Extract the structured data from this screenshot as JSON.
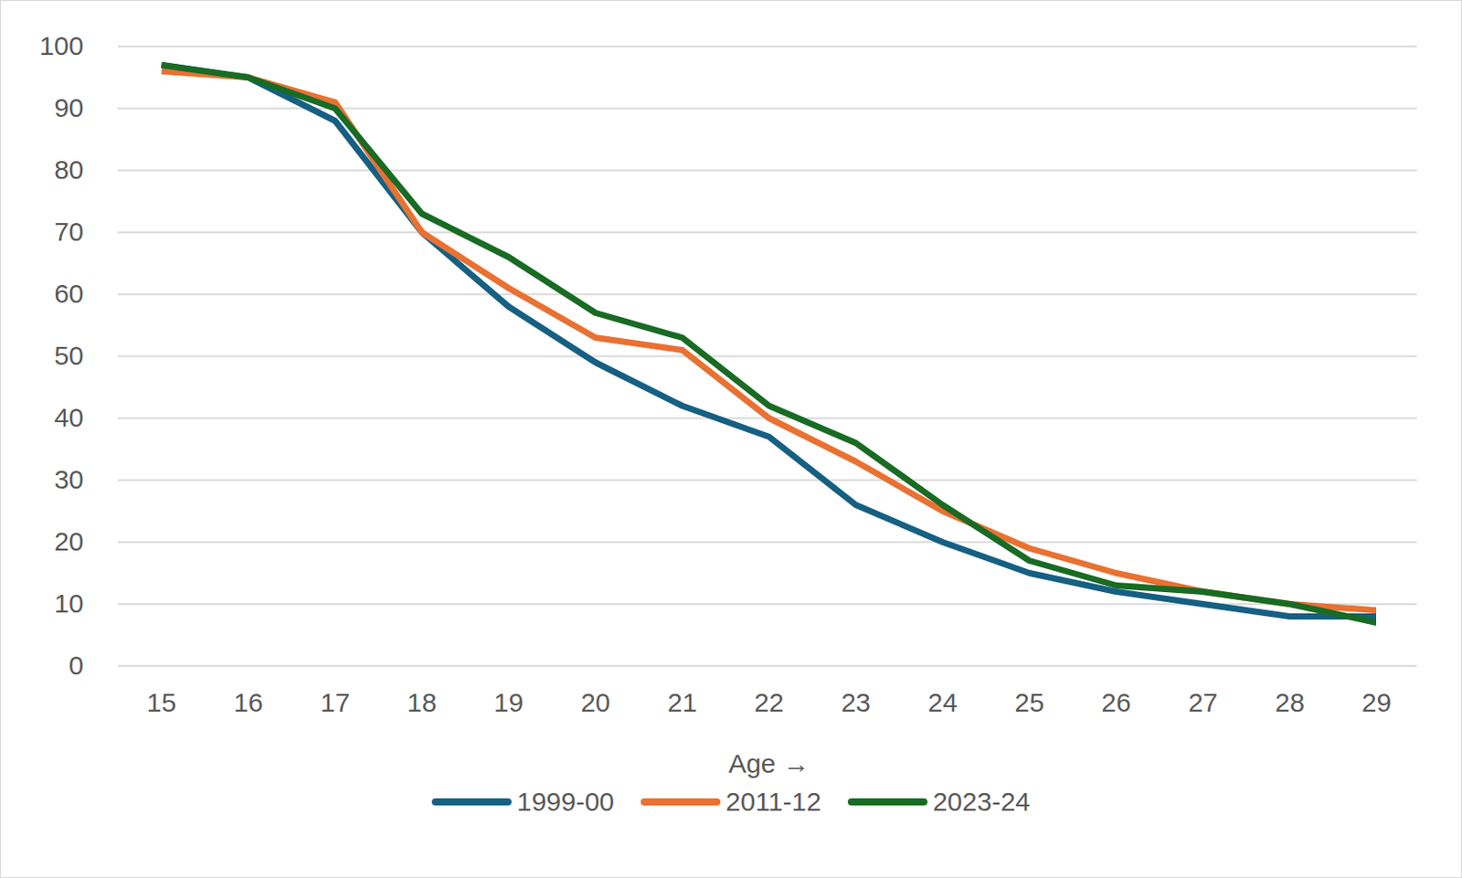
{
  "chart_data": {
    "type": "line",
    "x_label": "Age",
    "x": [
      15,
      16,
      17,
      18,
      19,
      20,
      21,
      22,
      23,
      24,
      25,
      26,
      27,
      28,
      29
    ],
    "xlim": [
      15,
      29
    ],
    "xticks": [
      15,
      16,
      17,
      18,
      19,
      20,
      21,
      22,
      23,
      24,
      25,
      26,
      27,
      28,
      29
    ],
    "ylim": [
      0,
      100
    ],
    "yticks": [
      0,
      10,
      20,
      30,
      40,
      50,
      60,
      70,
      80,
      90,
      100
    ],
    "grid": true,
    "legend": "bottom",
    "series": [
      {
        "name": "1999-00",
        "color": "#156082",
        "values": [
          97,
          95,
          88,
          70,
          58,
          49,
          42,
          37,
          26,
          20,
          15,
          12,
          10,
          8,
          8
        ]
      },
      {
        "name": "2011-12",
        "color": "#E97132",
        "values": [
          96,
          95,
          91,
          70,
          61,
          53,
          51,
          40,
          33,
          25,
          19,
          15,
          12,
          10,
          9
        ]
      },
      {
        "name": "2023-24",
        "color": "#196B24",
        "values": [
          97,
          95,
          90,
          73,
          66,
          57,
          53,
          42,
          36,
          26,
          17,
          13,
          12,
          10,
          7
        ]
      }
    ]
  }
}
